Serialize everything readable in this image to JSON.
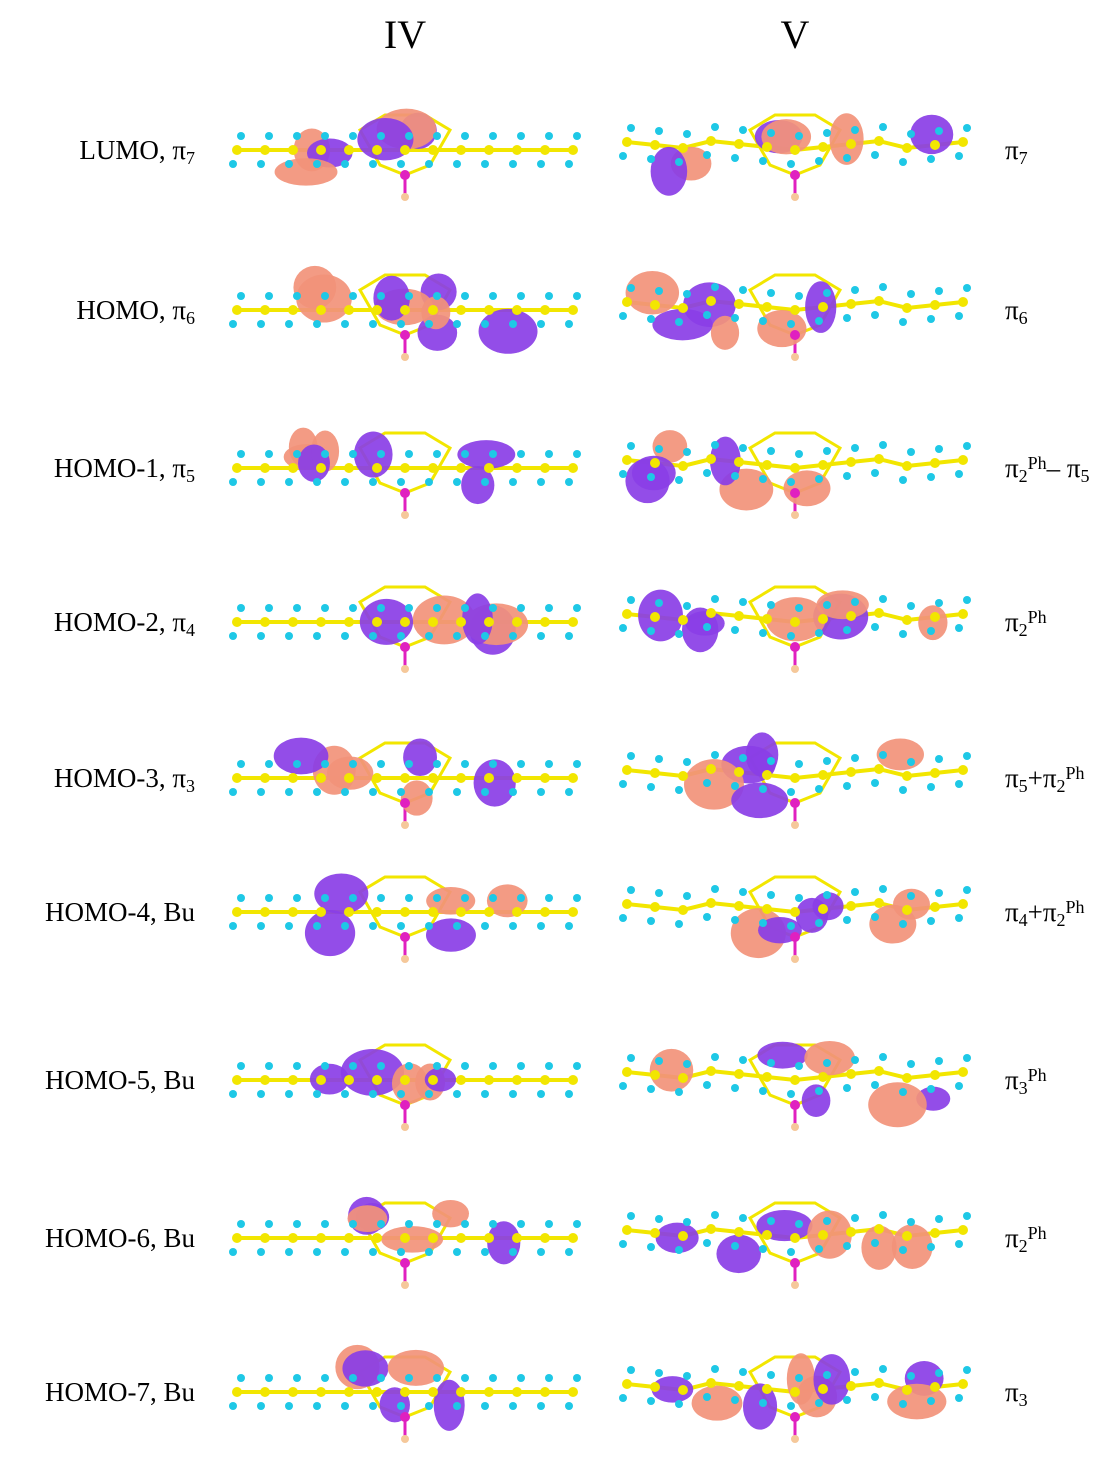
{
  "headers": [
    "IV",
    "V"
  ],
  "rows": [
    {
      "left": [
        {
          "text": "LUMO, π"
        },
        {
          "sub": "7"
        }
      ],
      "right": [
        {
          "text": "π"
        },
        {
          "sub": "7"
        }
      ]
    },
    {
      "left": [
        {
          "text": "HOMO, π"
        },
        {
          "sub": "6"
        }
      ],
      "right": [
        {
          "text": "π"
        },
        {
          "sub": "6"
        }
      ]
    },
    {
      "left": [
        {
          "text": "HOMO-1, π"
        },
        {
          "sub": "5"
        }
      ],
      "right": [
        {
          "text": "π"
        },
        {
          "sub": "2"
        },
        {
          "sup": "Ph"
        },
        {
          "text": "– π"
        },
        {
          "sub": "5"
        }
      ]
    },
    {
      "left": [
        {
          "text": "HOMO-2, π"
        },
        {
          "sub": "4"
        }
      ],
      "right": [
        {
          "text": "π"
        },
        {
          "sub": "2"
        },
        {
          "sup": "Ph"
        }
      ]
    },
    {
      "left": [
        {
          "text": "HOMO-3, π"
        },
        {
          "sub": "3"
        }
      ],
      "right": [
        {
          "text": "π"
        },
        {
          "sub": "5"
        },
        {
          "text": "+π"
        },
        {
          "sub": "2"
        },
        {
          "sup": "Ph"
        }
      ]
    },
    {
      "left": [
        {
          "text": "HOMO-4, Bu"
        }
      ],
      "right": [
        {
          "text": "π"
        },
        {
          "sub": "4"
        },
        {
          "text": "+π"
        },
        {
          "sub": "2"
        },
        {
          "sup": "Ph"
        }
      ]
    },
    {
      "left": [
        {
          "text": "HOMO-5, Bu"
        }
      ],
      "right": [
        {
          "text": "π"
        },
        {
          "sub": "3"
        },
        {
          "sup": "Ph"
        }
      ]
    },
    {
      "left": [
        {
          "text": "HOMO-6, Bu"
        }
      ],
      "right": [
        {
          "text": "π"
        },
        {
          "sub": "2"
        },
        {
          "sup": "Ph"
        }
      ]
    },
    {
      "left": [
        {
          "text": "HOMO-7, Bu"
        }
      ],
      "right": [
        {
          "text": "π"
        },
        {
          "sub": "3"
        }
      ]
    }
  ]
}
